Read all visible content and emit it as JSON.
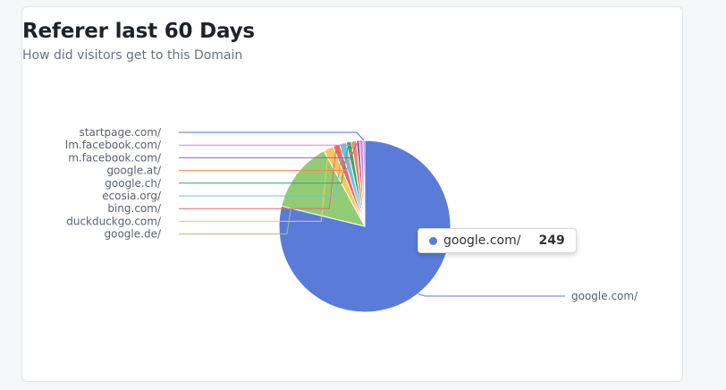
{
  "card": {
    "title": "Referer last 60 Days",
    "subtitle": "How did visitors get to this Domain"
  },
  "tooltip": {
    "label": "google.com/",
    "value": "249",
    "color": "#5b7bd9"
  },
  "chart_data": {
    "type": "pie",
    "title": "Referer last 60 Days",
    "subtitle": "How did visitors get to this Domain",
    "slices": [
      {
        "label": "google.com/",
        "value": 249,
        "color": "#5b7bd9"
      },
      {
        "label": "google.de/",
        "value": 42,
        "color": "#91cc75"
      },
      {
        "label": "duckduckgo.com/",
        "value": 6,
        "color": "#fac858"
      },
      {
        "label": "bing.com/",
        "value": 4,
        "color": "#ee6666"
      },
      {
        "label": "ecosia.org/",
        "value": 4,
        "color": "#73c0de"
      },
      {
        "label": "google.ch/",
        "value": 3,
        "color": "#3ba272"
      },
      {
        "label": "google.at/",
        "value": 3,
        "color": "#fc8452"
      },
      {
        "label": "m.facebook.com/",
        "value": 2,
        "color": "#9a60b4"
      },
      {
        "label": "lm.facebook.com/",
        "value": 2,
        "color": "#ea7ccc"
      },
      {
        "label": "startpage.com/",
        "value": 1,
        "color": "#5470c6"
      }
    ]
  }
}
